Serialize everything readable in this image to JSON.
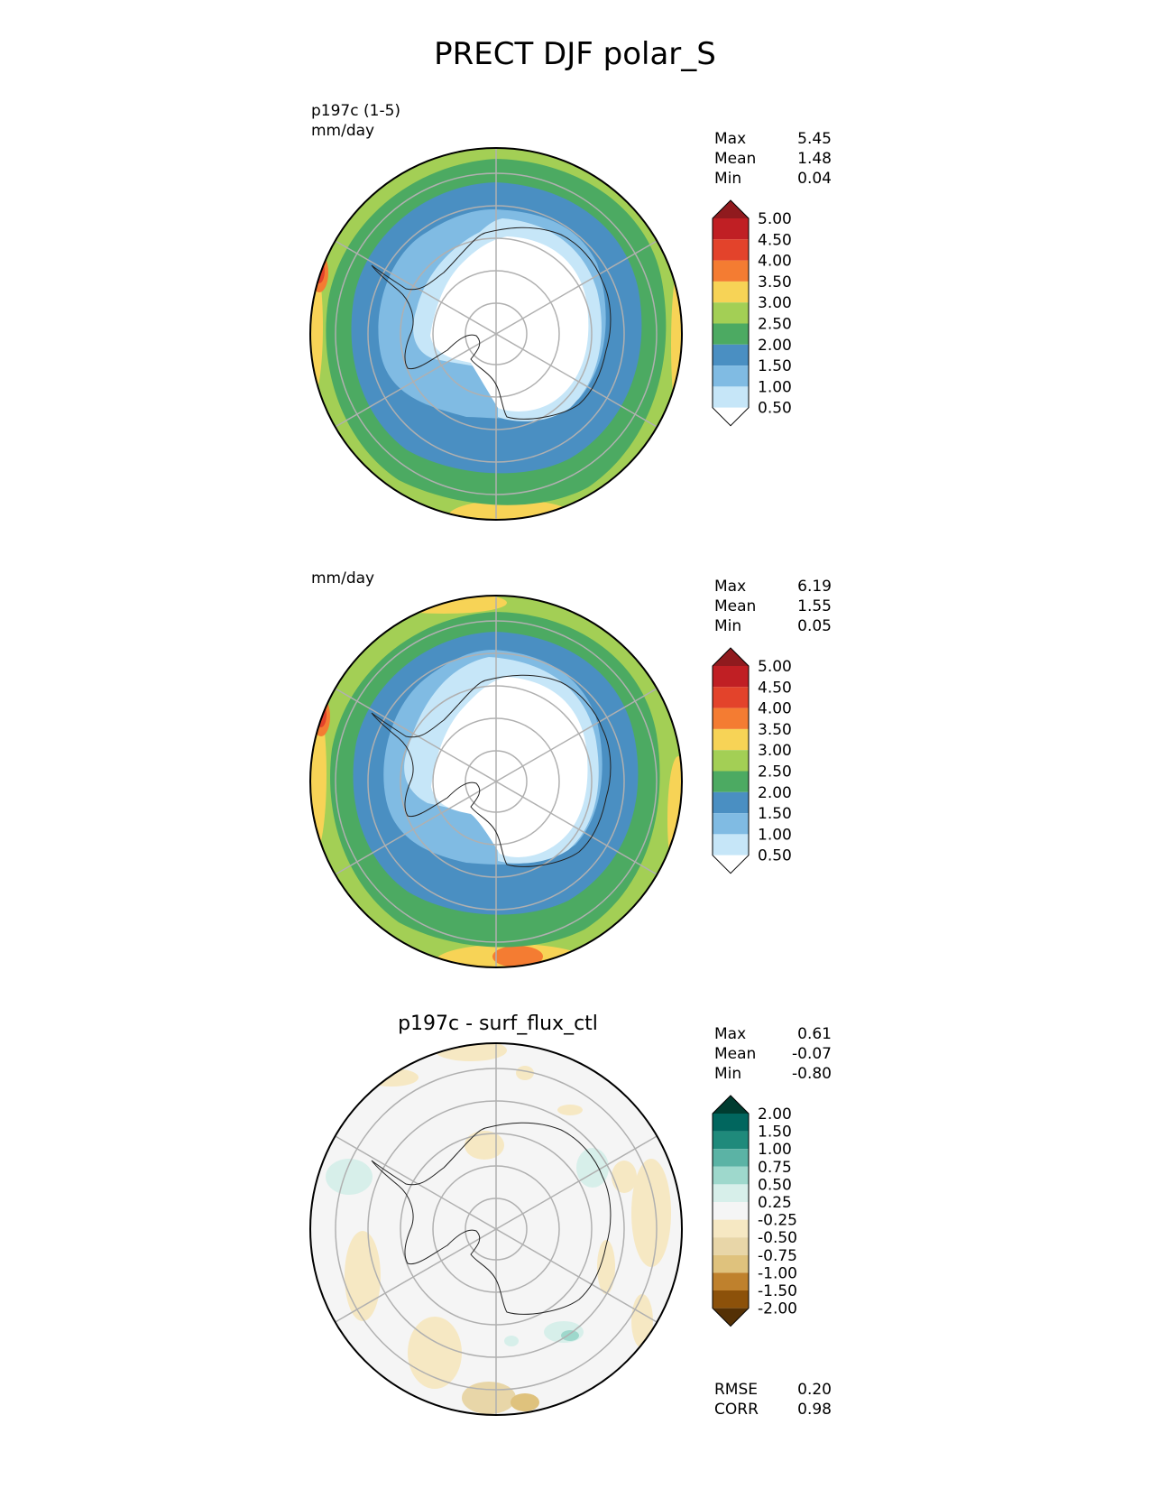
{
  "figure_title": "PRECT DJF polar_S",
  "panels": [
    {
      "title_left": "p197c (1-5)",
      "units": "mm/day",
      "center_title": "",
      "stats": [
        {
          "key": "Max",
          "value": "5.45"
        },
        {
          "key": "Mean",
          "value": "1.48"
        },
        {
          "key": "Min",
          "value": "0.04"
        }
      ],
      "colorbar": {
        "levels": [
          "0.50",
          "1.00",
          "1.50",
          "2.00",
          "2.50",
          "3.00",
          "3.50",
          "4.00",
          "4.50",
          "5.00"
        ],
        "colors": [
          "#ffffff",
          "#c6e6f8",
          "#80bbe3",
          "#4a8fc2",
          "#4caa62",
          "#a3cf55",
          "#f7d356",
          "#f47c32",
          "#e3432b",
          "#c01f24",
          "#901a1e"
        ]
      }
    },
    {
      "title_left": "",
      "units": "mm/day",
      "center_title": "",
      "stats": [
        {
          "key": "Max",
          "value": "6.19"
        },
        {
          "key": "Mean",
          "value": "1.55"
        },
        {
          "key": "Min",
          "value": "0.05"
        }
      ],
      "colorbar": {
        "levels": [
          "0.50",
          "1.00",
          "1.50",
          "2.00",
          "2.50",
          "3.00",
          "3.50",
          "4.00",
          "4.50",
          "5.00"
        ],
        "colors": [
          "#ffffff",
          "#c6e6f8",
          "#80bbe3",
          "#4a8fc2",
          "#4caa62",
          "#a3cf55",
          "#f7d356",
          "#f47c32",
          "#e3432b",
          "#c01f24",
          "#901a1e"
        ]
      }
    },
    {
      "title_left": "",
      "units": "",
      "center_title": "p197c - surf_flux_ctl",
      "stats": [
        {
          "key": "Max",
          "value": "0.61"
        },
        {
          "key": "Mean",
          "value": "-0.07"
        },
        {
          "key": "Min",
          "value": "-0.80"
        }
      ],
      "metrics": [
        {
          "key": "RMSE",
          "value": "0.20"
        },
        {
          "key": "CORR",
          "value": "0.98"
        }
      ],
      "colorbar": {
        "levels": [
          "-2.00",
          "-1.50",
          "-1.00",
          "-0.75",
          "-0.50",
          "-0.25",
          "0.25",
          "0.50",
          "0.75",
          "1.00",
          "1.50",
          "2.00"
        ],
        "colors": [
          "#543005",
          "#8c510a",
          "#bf812d",
          "#dfc27d",
          "#e8d6a8",
          "#f6e8c3",
          "#f5f5f5",
          "#d7efea",
          "#9ed8cc",
          "#5bb3a5",
          "#1f8a7b",
          "#01665e",
          "#003c30"
        ]
      }
    }
  ],
  "chart_data": [
    {
      "type": "heatmap",
      "projection": "south polar stereographic",
      "title": "p197c (1-5)",
      "units": "mm/day",
      "max": 5.45,
      "mean": 1.48,
      "min": 0.04,
      "contour_levels": [
        0.5,
        1.0,
        1.5,
        2.0,
        2.5,
        3.0,
        3.5,
        4.0,
        4.5,
        5.0
      ]
    },
    {
      "type": "heatmap",
      "projection": "south polar stereographic",
      "units": "mm/day",
      "max": 6.19,
      "mean": 1.55,
      "min": 0.05,
      "contour_levels": [
        0.5,
        1.0,
        1.5,
        2.0,
        2.5,
        3.0,
        3.5,
        4.0,
        4.5,
        5.0
      ]
    },
    {
      "type": "heatmap",
      "projection": "south polar stereographic",
      "title": "p197c - surf_flux_ctl",
      "max": 0.61,
      "mean": -0.07,
      "min": -0.8,
      "rmse": 0.2,
      "corr": 0.98,
      "contour_levels": [
        -2.0,
        -1.5,
        -1.0,
        -0.75,
        -0.5,
        -0.25,
        0.25,
        0.5,
        0.75,
        1.0,
        1.5,
        2.0
      ]
    }
  ]
}
